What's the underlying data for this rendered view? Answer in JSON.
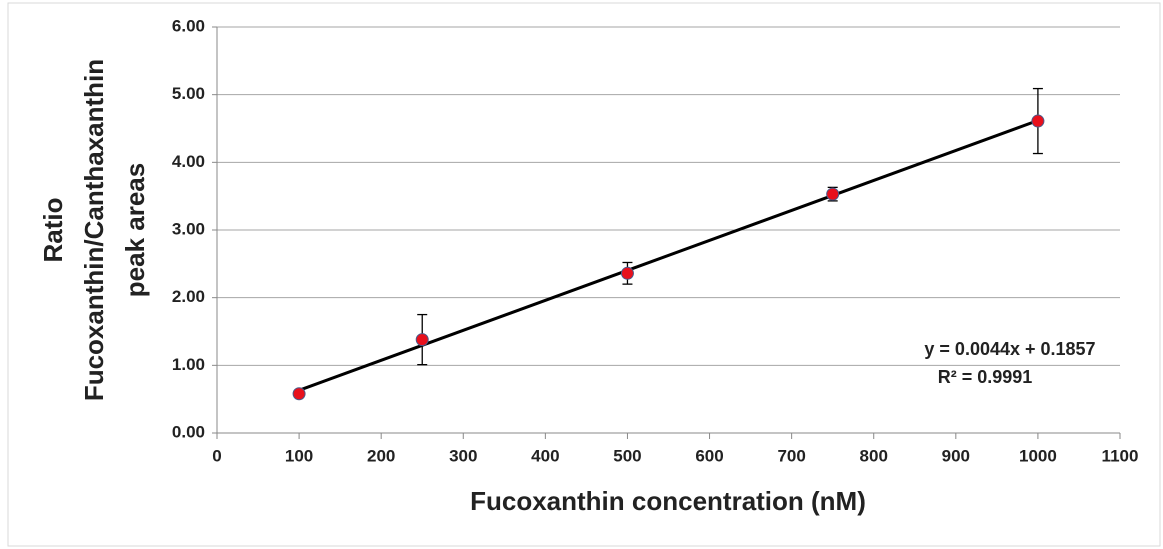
{
  "chart_data": {
    "type": "scatter",
    "x_label": "Fucoxanthin concentration (nM)",
    "y_label": [
      "Ratio",
      "Fucoxanthin/Canthaxanthin",
      "peak areas"
    ],
    "annotations": [
      "y = 0.0044x + 0.1857",
      "R² = 0.9991"
    ],
    "x": [
      100,
      250,
      500,
      750,
      1000
    ],
    "values": [
      0.58,
      1.38,
      2.36,
      3.53,
      4.61
    ],
    "errors": [
      0.03,
      0.37,
      0.16,
      0.1,
      0.48
    ],
    "color": "#e8101c",
    "trendline": true,
    "xlim": [
      0,
      1100
    ],
    "xticks": [
      0,
      100,
      200,
      300,
      400,
      500,
      600,
      700,
      800,
      900,
      1000,
      1100
    ],
    "ylim": [
      0,
      6
    ],
    "yticks": [
      {
        "value": 0,
        "label": "0.00"
      },
      {
        "value": 1,
        "label": "1.00"
      },
      {
        "value": 2,
        "label": "2.00"
      },
      {
        "value": 3,
        "label": "3.00"
      },
      {
        "value": 4,
        "label": "4.00"
      },
      {
        "value": 5,
        "label": "5.00"
      },
      {
        "value": 6,
        "label": "6.00"
      }
    ],
    "grid": true
  }
}
